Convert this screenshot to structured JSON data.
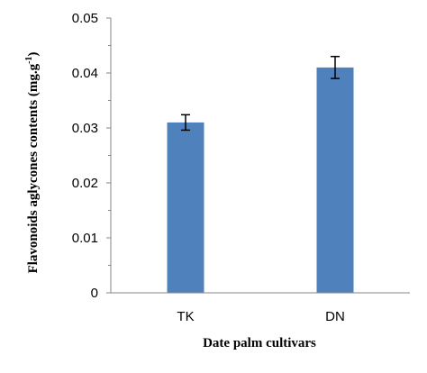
{
  "chart_data": {
    "type": "bar",
    "categories": [
      "TK",
      "DN"
    ],
    "values": [
      0.031,
      0.041
    ],
    "errors": [
      0.0014,
      0.002
    ],
    "title": "",
    "xlabel": "Date palm cultivars",
    "ylabel_main": "Flavonoids aglycones contents (mg.g",
    "ylabel_sup": "-1",
    "ylabel_end": ")",
    "ylim": [
      0,
      0.05
    ],
    "yticks": [
      "0",
      "0.01",
      "0.02",
      "0.03",
      "0.04",
      "0.05"
    ],
    "bar_color": "#4F81BD",
    "grid": false
  }
}
